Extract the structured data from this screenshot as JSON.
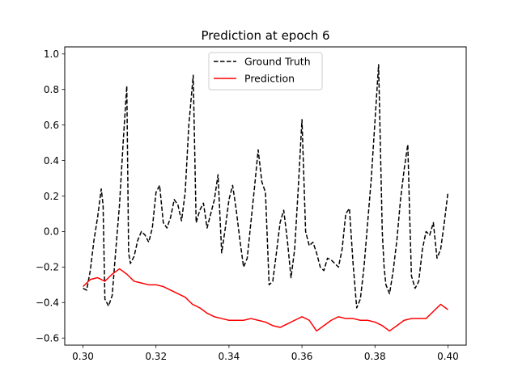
{
  "chart_data": {
    "type": "line",
    "title": "Prediction at epoch 6",
    "xlabel": "",
    "ylabel": "",
    "xlim": [
      0.295,
      0.405
    ],
    "ylim": [
      -0.64,
      1.04
    ],
    "xticks": [
      0.3,
      0.32,
      0.34,
      0.36,
      0.38,
      0.4
    ],
    "xtick_labels": [
      "0.30",
      "0.32",
      "0.34",
      "0.36",
      "0.38",
      "0.40"
    ],
    "yticks": [
      -0.6,
      -0.4,
      -0.2,
      0.0,
      0.2,
      0.4,
      0.6,
      0.8,
      1.0
    ],
    "ytick_labels": [
      "−0.6",
      "−0.4",
      "−0.2",
      "0.0",
      "0.2",
      "0.4",
      "0.6",
      "0.8",
      "1.0"
    ],
    "grid": false,
    "legend_position": "top-center",
    "series": [
      {
        "name": "Ground Truth",
        "color": "#000000",
        "style": "dashed",
        "x": [
          0.3,
          0.301,
          0.302,
          0.303,
          0.304,
          0.305,
          0.3055,
          0.306,
          0.307,
          0.308,
          0.309,
          0.31,
          0.311,
          0.312,
          0.3125,
          0.313,
          0.314,
          0.315,
          0.316,
          0.317,
          0.318,
          0.319,
          0.32,
          0.321,
          0.322,
          0.323,
          0.324,
          0.325,
          0.326,
          0.327,
          0.328,
          0.329,
          0.3302,
          0.331,
          0.332,
          0.333,
          0.334,
          0.335,
          0.336,
          0.337,
          0.338,
          0.339,
          0.34,
          0.341,
          0.342,
          0.343,
          0.344,
          0.345,
          0.346,
          0.347,
          0.348,
          0.349,
          0.35,
          0.351,
          0.352,
          0.353,
          0.354,
          0.355,
          0.356,
          0.357,
          0.358,
          0.359,
          0.36,
          0.361,
          0.362,
          0.363,
          0.364,
          0.365,
          0.366,
          0.367,
          0.368,
          0.369,
          0.37,
          0.371,
          0.372,
          0.373,
          0.374,
          0.375,
          0.376,
          0.377,
          0.378,
          0.379,
          0.38,
          0.381,
          0.382,
          0.3825,
          0.383,
          0.384,
          0.385,
          0.386,
          0.387,
          0.388,
          0.389,
          0.3895,
          0.39,
          0.391,
          0.392,
          0.393,
          0.394,
          0.395,
          0.396,
          0.397,
          0.398,
          0.399,
          0.4
        ],
        "values": [
          -0.32,
          -0.33,
          -0.22,
          -0.05,
          0.08,
          0.24,
          0.15,
          -0.38,
          -0.42,
          -0.36,
          -0.1,
          0.15,
          0.5,
          0.82,
          -0.12,
          -0.18,
          -0.14,
          -0.05,
          0.0,
          -0.02,
          -0.06,
          0.02,
          0.22,
          0.26,
          0.05,
          0.02,
          0.08,
          0.18,
          0.15,
          0.06,
          0.22,
          0.6,
          0.88,
          0.05,
          0.12,
          0.16,
          0.02,
          0.1,
          0.18,
          0.32,
          -0.12,
          0.02,
          0.18,
          0.26,
          0.12,
          -0.05,
          -0.2,
          -0.15,
          0.05,
          0.25,
          0.46,
          0.28,
          0.22,
          -0.3,
          -0.28,
          -0.12,
          0.05,
          0.12,
          -0.05,
          -0.26,
          -0.1,
          0.25,
          0.63,
          0.0,
          -0.08,
          -0.06,
          -0.12,
          -0.2,
          -0.22,
          -0.15,
          -0.16,
          -0.18,
          -0.2,
          -0.1,
          0.1,
          0.13,
          -0.18,
          -0.43,
          -0.38,
          -0.2,
          0.05,
          0.3,
          0.62,
          0.94,
          0.0,
          -0.2,
          -0.3,
          -0.35,
          -0.22,
          -0.05,
          0.18,
          0.35,
          0.49,
          0.1,
          -0.25,
          -0.32,
          -0.28,
          -0.1,
          0.0,
          -0.02,
          0.05,
          -0.15,
          -0.1,
          0.05,
          0.22
        ]
      },
      {
        "name": "Prediction",
        "color": "#ff0000",
        "style": "solid",
        "x": [
          0.3,
          0.302,
          0.304,
          0.306,
          0.308,
          0.31,
          0.312,
          0.314,
          0.316,
          0.318,
          0.32,
          0.322,
          0.324,
          0.326,
          0.328,
          0.33,
          0.332,
          0.334,
          0.336,
          0.338,
          0.34,
          0.342,
          0.344,
          0.346,
          0.348,
          0.35,
          0.352,
          0.354,
          0.356,
          0.358,
          0.36,
          0.362,
          0.364,
          0.366,
          0.368,
          0.37,
          0.372,
          0.374,
          0.376,
          0.378,
          0.38,
          0.382,
          0.384,
          0.386,
          0.388,
          0.39,
          0.392,
          0.394,
          0.396,
          0.398,
          0.4
        ],
        "values": [
          -0.31,
          -0.27,
          -0.26,
          -0.28,
          -0.24,
          -0.21,
          -0.24,
          -0.28,
          -0.29,
          -0.3,
          -0.3,
          -0.31,
          -0.33,
          -0.35,
          -0.37,
          -0.41,
          -0.43,
          -0.46,
          -0.48,
          -0.49,
          -0.5,
          -0.5,
          -0.5,
          -0.49,
          -0.5,
          -0.51,
          -0.53,
          -0.54,
          -0.52,
          -0.5,
          -0.48,
          -0.5,
          -0.56,
          -0.53,
          -0.5,
          -0.48,
          -0.49,
          -0.49,
          -0.5,
          -0.5,
          -0.51,
          -0.53,
          -0.56,
          -0.53,
          -0.5,
          -0.49,
          -0.49,
          -0.49,
          -0.45,
          -0.41,
          -0.44
        ]
      }
    ]
  }
}
